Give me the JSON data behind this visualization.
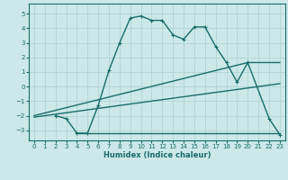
{
  "xlabel": "Humidex (Indice chaleur)",
  "bg_color": "#cce8e8",
  "grid_color": "#b0d4d4",
  "line_color": "#1a6b6b",
  "xlim": [
    -0.5,
    23.5
  ],
  "ylim": [
    -3.7,
    5.7
  ],
  "yticks": [
    -3,
    -2,
    -1,
    0,
    1,
    2,
    3,
    4,
    5
  ],
  "xticks": [
    0,
    1,
    2,
    3,
    4,
    5,
    6,
    7,
    8,
    9,
    10,
    11,
    12,
    13,
    14,
    15,
    16,
    17,
    18,
    19,
    20,
    21,
    22,
    23
  ],
  "curve1_x": [
    2,
    3,
    4,
    5,
    6,
    7,
    8,
    9,
    10,
    11,
    12,
    13,
    14,
    15,
    16,
    17,
    18,
    19,
    20,
    22,
    23
  ],
  "curve1_y": [
    -2.0,
    -2.2,
    -3.2,
    -3.2,
    -1.3,
    1.1,
    3.0,
    4.7,
    4.85,
    4.55,
    4.55,
    3.55,
    3.25,
    4.1,
    4.1,
    2.75,
    1.65,
    0.3,
    1.65,
    -2.2,
    -3.3
  ],
  "curve2_x": [
    0,
    20,
    23
  ],
  "curve2_y": [
    -2.0,
    1.65,
    1.65
  ],
  "curve3_x": [
    0,
    23
  ],
  "curve3_y": [
    -2.1,
    0.2
  ],
  "curve4_x": [
    4,
    23
  ],
  "curve4_y": [
    -3.2,
    -3.2
  ],
  "linewidth": 1.0,
  "markersize": 2.5
}
